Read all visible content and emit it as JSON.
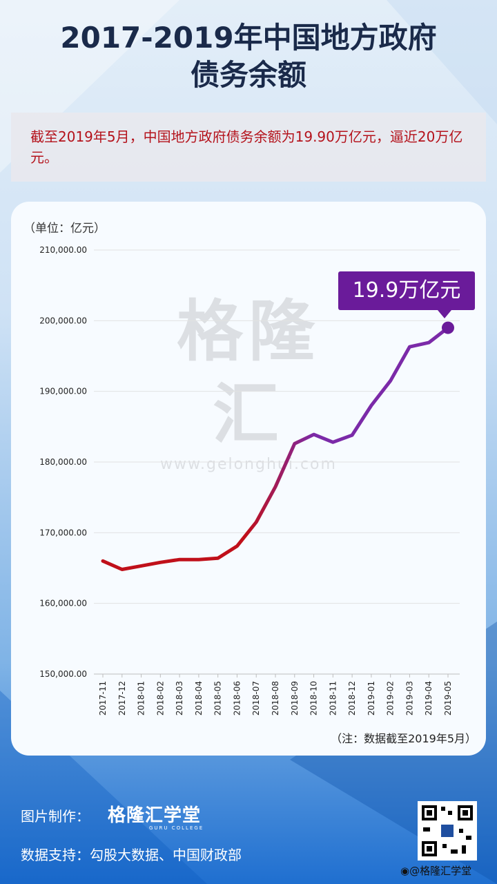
{
  "title": {
    "line1": "2017-2019年中国地方政府",
    "line2": "债务余额"
  },
  "summary": "截至2019年5月，中国地方政府债务余额为19.90万亿元，逼近20万亿元。",
  "unit_label": "（单位：亿元）",
  "watermark": {
    "text": "格隆汇",
    "url": "www.gelonghui.com"
  },
  "callout": "19.9万亿元",
  "note": "（注：数据截至2019年5月）",
  "footer": {
    "made_by_label": "图片制作：",
    "brand_name": "格隆汇学堂",
    "brand_sub": "GURU COLLEGE",
    "data_source": "数据支持：勾股大数据、中国财政部",
    "weibo": "@格隆汇学堂"
  },
  "colors": {
    "line_start": "#c0101a",
    "line_end": "#7b2aa8",
    "callout_bg": "#6a1b9a"
  },
  "chart_data": {
    "type": "line",
    "title": "",
    "xlabel": "",
    "ylabel": "（单位：亿元）",
    "ylim": [
      150000,
      210000
    ],
    "yticks": [
      150000,
      160000,
      170000,
      180000,
      190000,
      200000,
      210000
    ],
    "ytick_labels": [
      "150,000.00",
      "160,000.00",
      "170,000.00",
      "180,000.00",
      "190,000.00",
      "200,000.00",
      "210,000.00"
    ],
    "grid": true,
    "categories": [
      "2017-11",
      "2017-12",
      "2018-01",
      "2018-02",
      "2018-03",
      "2018-04",
      "2018-05",
      "2018-06",
      "2018-07",
      "2018-08",
      "2018-09",
      "2018-10",
      "2018-11",
      "2018-12",
      "2019-01",
      "2019-02",
      "2019-03",
      "2019-04",
      "2019-05"
    ],
    "series": [
      {
        "values": [
          166000,
          164800,
          165300,
          165800,
          166200,
          166200,
          166400,
          168100,
          171500,
          176500,
          182600,
          183900,
          182800,
          183800,
          188000,
          191500,
          196300,
          196900,
          199000
        ]
      }
    ],
    "annotation": "19.9万亿元"
  }
}
